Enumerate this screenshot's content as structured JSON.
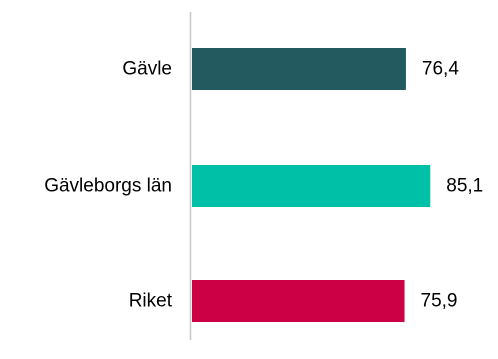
{
  "chart_data": {
    "type": "bar",
    "orientation": "horizontal",
    "categories": [
      "Gävle",
      "Gävleborgs län",
      "Riket"
    ],
    "values": [
      76.4,
      85.1,
      75.9
    ],
    "value_labels": [
      "76,4",
      "85,1",
      "75,9"
    ],
    "colors": [
      "#235A60",
      "#00C0A8",
      "#CC0044"
    ],
    "axis_color": "#C8C8C8",
    "grid": false,
    "legend": "none"
  }
}
